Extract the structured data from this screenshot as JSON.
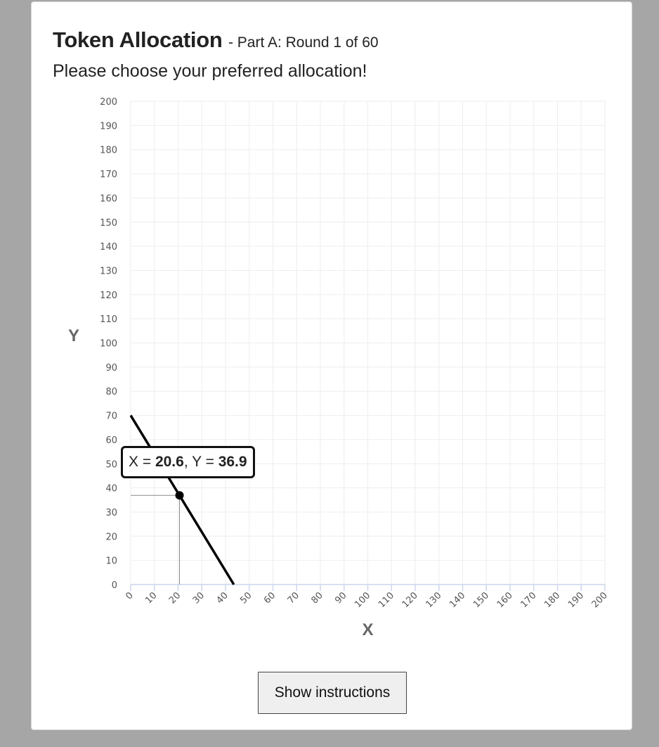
{
  "header": {
    "title": "Token Allocation",
    "subtitle": "- Part A: Round 1 of 60",
    "prompt": "Please choose your preferred allocation!"
  },
  "chart_data": {
    "type": "line",
    "xlabel": "X",
    "ylabel": "Y",
    "xlim": [
      0,
      200
    ],
    "ylim": [
      0,
      200
    ],
    "x_ticks": [
      0,
      10,
      20,
      30,
      40,
      50,
      60,
      70,
      80,
      90,
      100,
      110,
      120,
      130,
      140,
      150,
      160,
      170,
      180,
      190,
      200
    ],
    "y_ticks": [
      0,
      10,
      20,
      30,
      40,
      50,
      60,
      70,
      80,
      90,
      100,
      110,
      120,
      130,
      140,
      150,
      160,
      170,
      180,
      190,
      200
    ],
    "grid": true,
    "budget_line": {
      "x": [
        0,
        43.5
      ],
      "y": [
        70,
        0
      ]
    },
    "selected_point": {
      "x": 20.6,
      "y": 36.9
    },
    "colors": {
      "line": "#000000",
      "grid": "#eeeeee",
      "axis": "#ccd6eb",
      "guide": "#888888"
    }
  },
  "tooltip": {
    "x_prefix": "X = ",
    "x_value": "20.6",
    "separator": ", Y = ",
    "y_value": "36.9"
  },
  "buttons": {
    "show_instructions": "Show instructions"
  }
}
